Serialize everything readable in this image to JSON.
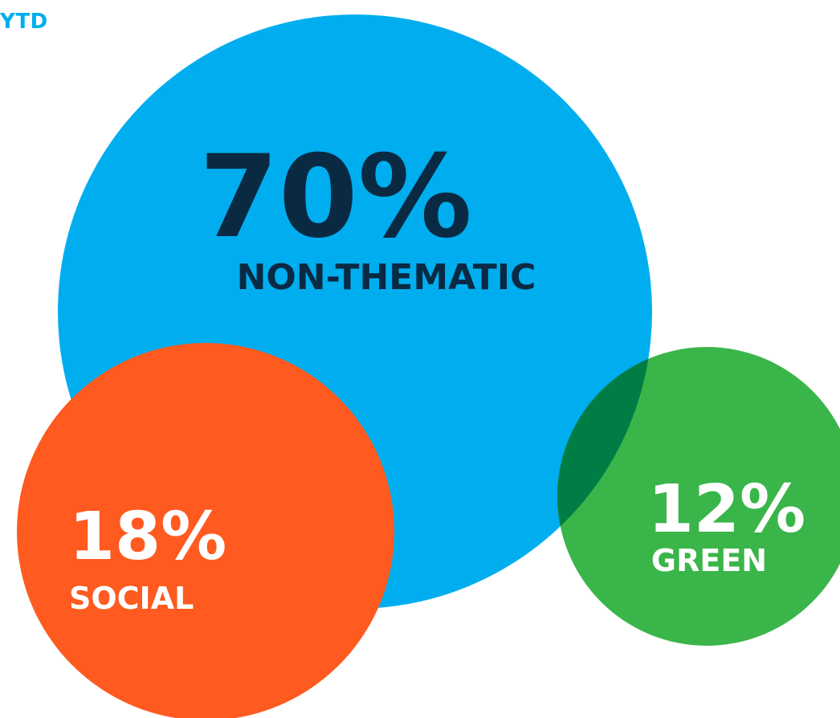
{
  "header": {
    "label": "YTD"
  },
  "chart_data": {
    "type": "bubble",
    "title": "",
    "unit": "%",
    "series": [
      {
        "name": "NON-THEMATIC",
        "value": 70,
        "label": "70%",
        "color": "#00aeef",
        "text_color": "#0a2a43"
      },
      {
        "name": "SOCIAL",
        "value": 18,
        "label": "18%",
        "color": "#ff5a1f",
        "text_color": "#ffffff"
      },
      {
        "name": "GREEN",
        "value": 12,
        "label": "12%",
        "color": "#3ab54a",
        "text_color": "#ffffff"
      }
    ],
    "overlap_color": "#007d45"
  }
}
